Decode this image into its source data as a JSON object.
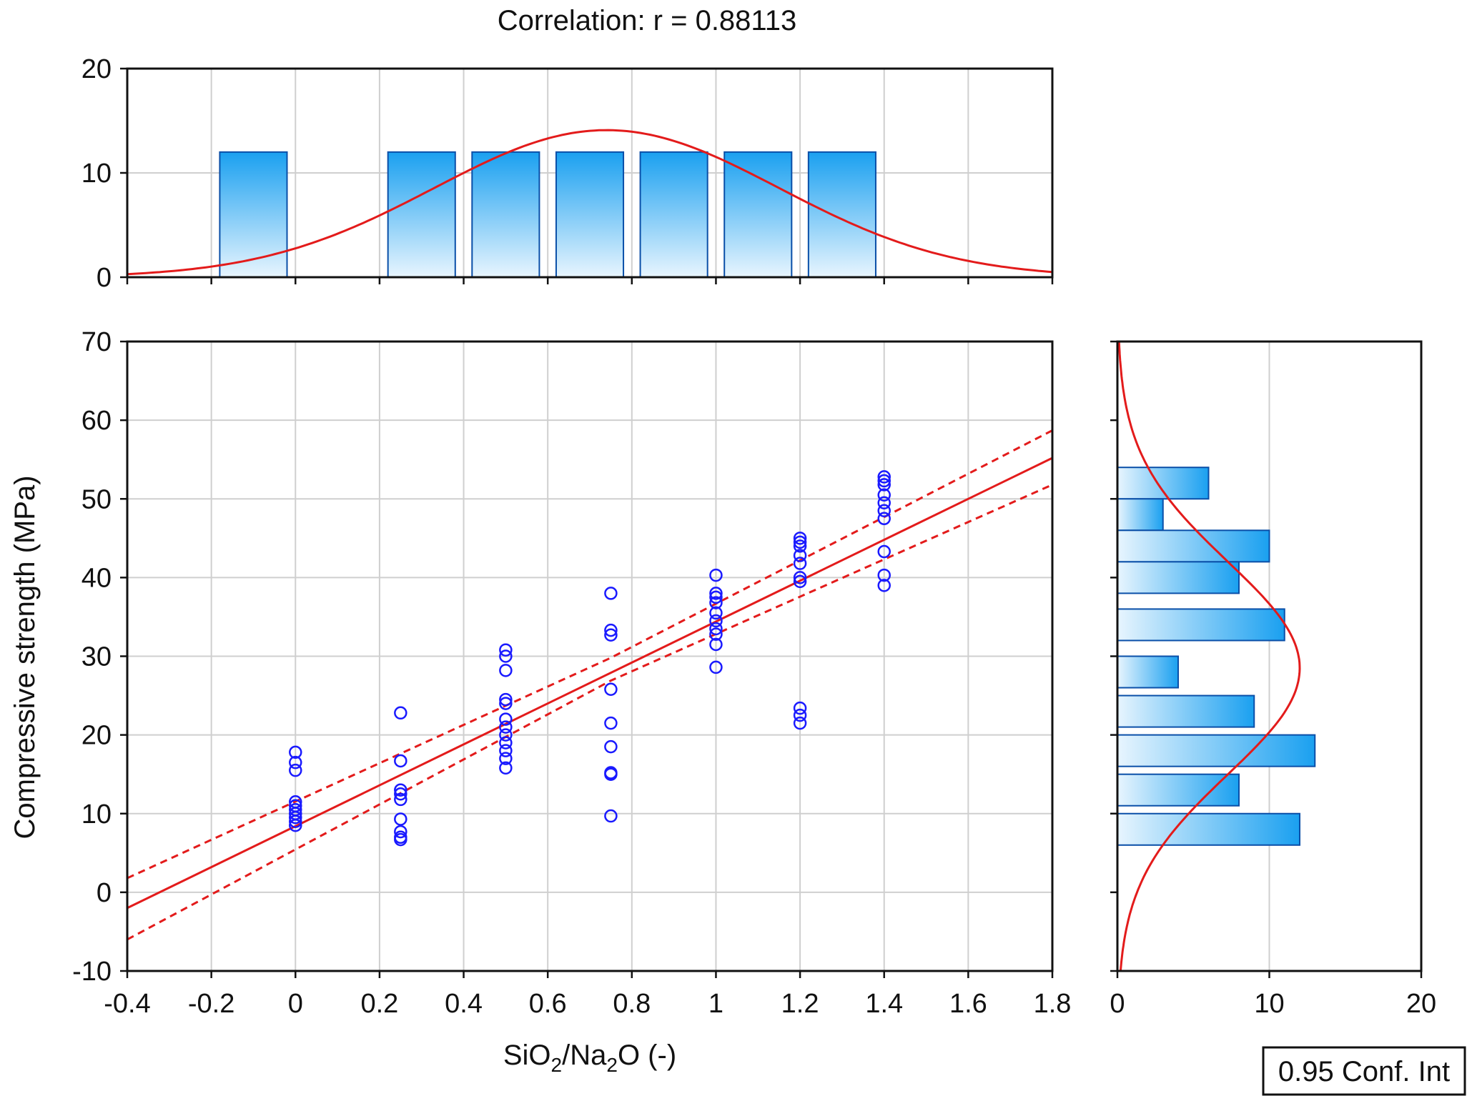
{
  "chart_data": {
    "type": "scatter",
    "title": "Correlation: r = 0.88113",
    "xlabel_parts": [
      "SiO",
      "2",
      "/Na",
      "2",
      "O (-)"
    ],
    "ylabel": "Compressive strength (MPa)",
    "legend": "0.95 Conf. Int",
    "colors": {
      "points": "#1a1aff",
      "fit": "#e31b1b",
      "bar": "#1aa0f0",
      "bar_edge": "#0a4fa8"
    },
    "xlim": [
      -0.4,
      1.8
    ],
    "ylim": [
      -10,
      70
    ],
    "x_ticks": [
      {
        "v": -0.4,
        "t": "-0.4"
      },
      {
        "v": -0.2,
        "t": "-0.2"
      },
      {
        "v": 0,
        "t": "0"
      },
      {
        "v": 0.2,
        "t": "0.2"
      },
      {
        "v": 0.4,
        "t": "0.4"
      },
      {
        "v": 0.6,
        "t": "0.6"
      },
      {
        "v": 0.8,
        "t": "0.8"
      },
      {
        "v": 1,
        "t": "1"
      },
      {
        "v": 1.2,
        "t": "1.2"
      },
      {
        "v": 1.4,
        "t": "1.4"
      },
      {
        "v": 1.6,
        "t": "1.6"
      },
      {
        "v": 1.8,
        "t": "1.8"
      }
    ],
    "y_ticks": [
      {
        "v": -10,
        "t": "-10"
      },
      {
        "v": 0,
        "t": "0"
      },
      {
        "v": 10,
        "t": "10"
      },
      {
        "v": 20,
        "t": "20"
      },
      {
        "v": 30,
        "t": "30"
      },
      {
        "v": 40,
        "t": "40"
      },
      {
        "v": 50,
        "t": "50"
      },
      {
        "v": 60,
        "t": "60"
      },
      {
        "v": 70,
        "t": "70"
      }
    ],
    "points": [
      {
        "x": 0,
        "y": [
          17.8,
          16.5,
          15.5,
          11.5,
          11,
          10.5,
          10,
          9.5,
          9,
          8.5
        ]
      },
      {
        "x": 0.25,
        "y": [
          22.8,
          16.7,
          13,
          12.5,
          11.8,
          9.3,
          7.7,
          7,
          6.7
        ]
      },
      {
        "x": 0.5,
        "y": [
          30.8,
          30,
          28.2,
          24.5,
          24,
          22,
          21,
          20,
          19,
          18,
          17,
          15.8
        ]
      },
      {
        "x": 0.75,
        "y": [
          38,
          33.3,
          32.7,
          25.8,
          21.5,
          18.5,
          15.2,
          15,
          9.7
        ]
      },
      {
        "x": 1,
        "y": [
          40.3,
          38,
          37.5,
          36.8,
          35.5,
          34.5,
          33.5,
          32.8,
          31.5,
          28.6
        ]
      },
      {
        "x": 1.2,
        "y": [
          45,
          44.5,
          44,
          42.8,
          41.8,
          40,
          39.5,
          23.4,
          22.5,
          21.5
        ]
      },
      {
        "x": 1.4,
        "y": [
          52.8,
          52.3,
          51.8,
          50.5,
          49.5,
          48.5,
          47.5,
          43.3,
          40.3,
          39
        ]
      }
    ],
    "fit": {
      "x": [
        -0.4,
        1.8
      ],
      "y": [
        -2,
        55.2
      ]
    },
    "ci_upper": {
      "x": [
        -0.4,
        0.75,
        1.8
      ],
      "y": [
        1.8,
        29.8,
        58.7
      ]
    },
    "ci_lower": {
      "x": [
        -0.4,
        0.75,
        1.8
      ],
      "y": [
        -6,
        26.9,
        51.8
      ]
    },
    "top_hist": {
      "ylim": [
        0,
        20
      ],
      "y_ticks": [
        {
          "v": 0,
          "t": "0"
        },
        {
          "v": 10,
          "t": "10"
        },
        {
          "v": 20,
          "t": "20"
        }
      ],
      "bins": [
        {
          "x0": -0.18,
          "x1": -0.02,
          "h": 12
        },
        {
          "x0": 0.22,
          "x1": 0.38,
          "h": 12
        },
        {
          "x0": 0.42,
          "x1": 0.58,
          "h": 12
        },
        {
          "x0": 0.62,
          "x1": 0.78,
          "h": 12
        },
        {
          "x0": 0.82,
          "x1": 0.98,
          "h": 12
        },
        {
          "x0": 1.02,
          "x1": 1.18,
          "h": 12
        },
        {
          "x0": 1.22,
          "x1": 1.38,
          "h": 12
        }
      ],
      "normal": {
        "mean": 0.74,
        "sd": 0.41,
        "peak": 14.1
      }
    },
    "right_hist": {
      "xlim": [
        0,
        20
      ],
      "x_ticks": [
        {
          "v": 0,
          "t": "0"
        },
        {
          "v": 10,
          "t": "10"
        },
        {
          "v": 20,
          "t": "20"
        }
      ],
      "bins": [
        {
          "y0": 50,
          "y1": 54,
          "c": 6
        },
        {
          "y0": 46,
          "y1": 50,
          "c": 3
        },
        {
          "y0": 42,
          "y1": 46,
          "c": 10
        },
        {
          "y0": 38,
          "y1": 42,
          "c": 8
        },
        {
          "y0": 32,
          "y1": 36,
          "c": 11
        },
        {
          "y0": 26,
          "y1": 30,
          "c": 4
        },
        {
          "y0": 21,
          "y1": 25,
          "c": 9
        },
        {
          "y0": 16,
          "y1": 20,
          "c": 13
        },
        {
          "y0": 11,
          "y1": 15,
          "c": 8
        },
        {
          "y0": 6,
          "y1": 10,
          "c": 12
        }
      ],
      "normal": {
        "mean": 28.5,
        "sd": 13.5,
        "peak": 12
      }
    }
  }
}
